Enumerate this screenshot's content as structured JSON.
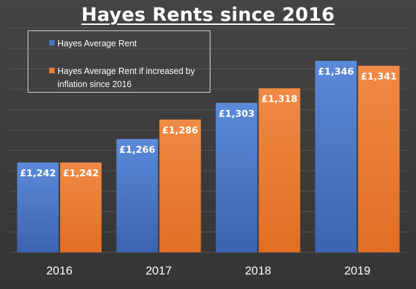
{
  "chart_data": {
    "type": "bar",
    "title": "Hayes Rents since 2016",
    "categories": [
      "2016",
      "2017",
      "2018",
      "2019"
    ],
    "series": [
      {
        "name": "Hayes Average Rent",
        "values": [
          1242,
          1266,
          1303,
          1346
        ],
        "labels": [
          "£1,242",
          "£1,266",
          "£1,303",
          "£1,346"
        ],
        "color": "#4472c4"
      },
      {
        "name": "Hayes  Average Rent if increased by inflation since 2016",
        "values": [
          1242,
          1286,
          1318,
          1341
        ],
        "labels": [
          "£1,242",
          "£1,286",
          "£1,318",
          "£1,341"
        ],
        "color": "#ed7d31"
      }
    ],
    "ylim": [
      1150,
      1380
    ],
    "grid": true,
    "legend_position": "top-left",
    "xlabel": "",
    "ylabel": ""
  }
}
